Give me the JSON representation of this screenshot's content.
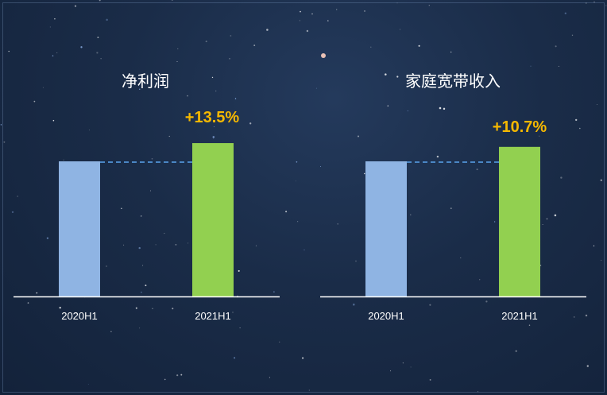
{
  "chart_data": [
    {
      "type": "bar",
      "title": "净利润",
      "categories": [
        "2020H1",
        "2021H1"
      ],
      "values": [
        100,
        113.5
      ],
      "annotation": "+13.5%",
      "colors": [
        "#8fb4e3",
        "#92d050"
      ]
    },
    {
      "type": "bar",
      "title": "家庭宽带收入",
      "categories": [
        "2020H1",
        "2021H1"
      ],
      "values": [
        100,
        110.7
      ],
      "annotation": "+10.7%",
      "colors": [
        "#8fb4e3",
        "#92d050"
      ]
    }
  ],
  "colors": {
    "annotation": "#f5b800",
    "reference_line": "#4a86c5",
    "axis": "#ffffff"
  }
}
